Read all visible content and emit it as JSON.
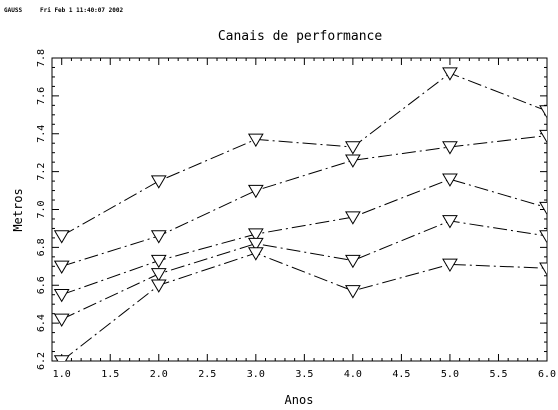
{
  "header": {
    "program": "GAUSS",
    "timestamp": "Fri Feb  1 11:40:07 2002"
  },
  "chart_data": {
    "type": "line",
    "title": "Canais de performance",
    "xlabel": "Anos",
    "ylabel": "Metros",
    "xlim": [
      0.9,
      6.0
    ],
    "ylim": [
      6.2,
      7.8
    ],
    "xticks": [
      "1.0",
      "1.5",
      "2.0",
      "2.5",
      "3.0",
      "3.5",
      "4.0",
      "4.5",
      "5.0",
      "5.5",
      "6.0"
    ],
    "yticks": [
      "6.2",
      "6.4",
      "6.6",
      "6.8",
      "7.0",
      "7.2",
      "7.4",
      "7.6",
      "7.8"
    ],
    "x": [
      1,
      2,
      3,
      4,
      5,
      6
    ],
    "marker": "triangle-down",
    "grid": false,
    "series": [
      {
        "values": [
          6.86,
          7.15,
          7.37,
          7.33,
          7.72,
          7.52
        ],
        "dash": "dash-dot"
      },
      {
        "values": [
          6.7,
          6.86,
          7.1,
          7.26,
          7.33,
          7.39
        ],
        "dash": "dash-dot"
      },
      {
        "values": [
          6.55,
          6.73,
          6.87,
          6.96,
          7.16,
          7.01
        ],
        "dash": "dash-dot"
      },
      {
        "values": [
          6.42,
          6.66,
          6.82,
          6.73,
          6.94,
          6.86
        ],
        "dash": "dash-dot"
      },
      {
        "values": [
          6.2,
          6.6,
          6.77,
          6.57,
          6.71,
          6.69
        ],
        "dash": "dash-dot"
      }
    ]
  }
}
